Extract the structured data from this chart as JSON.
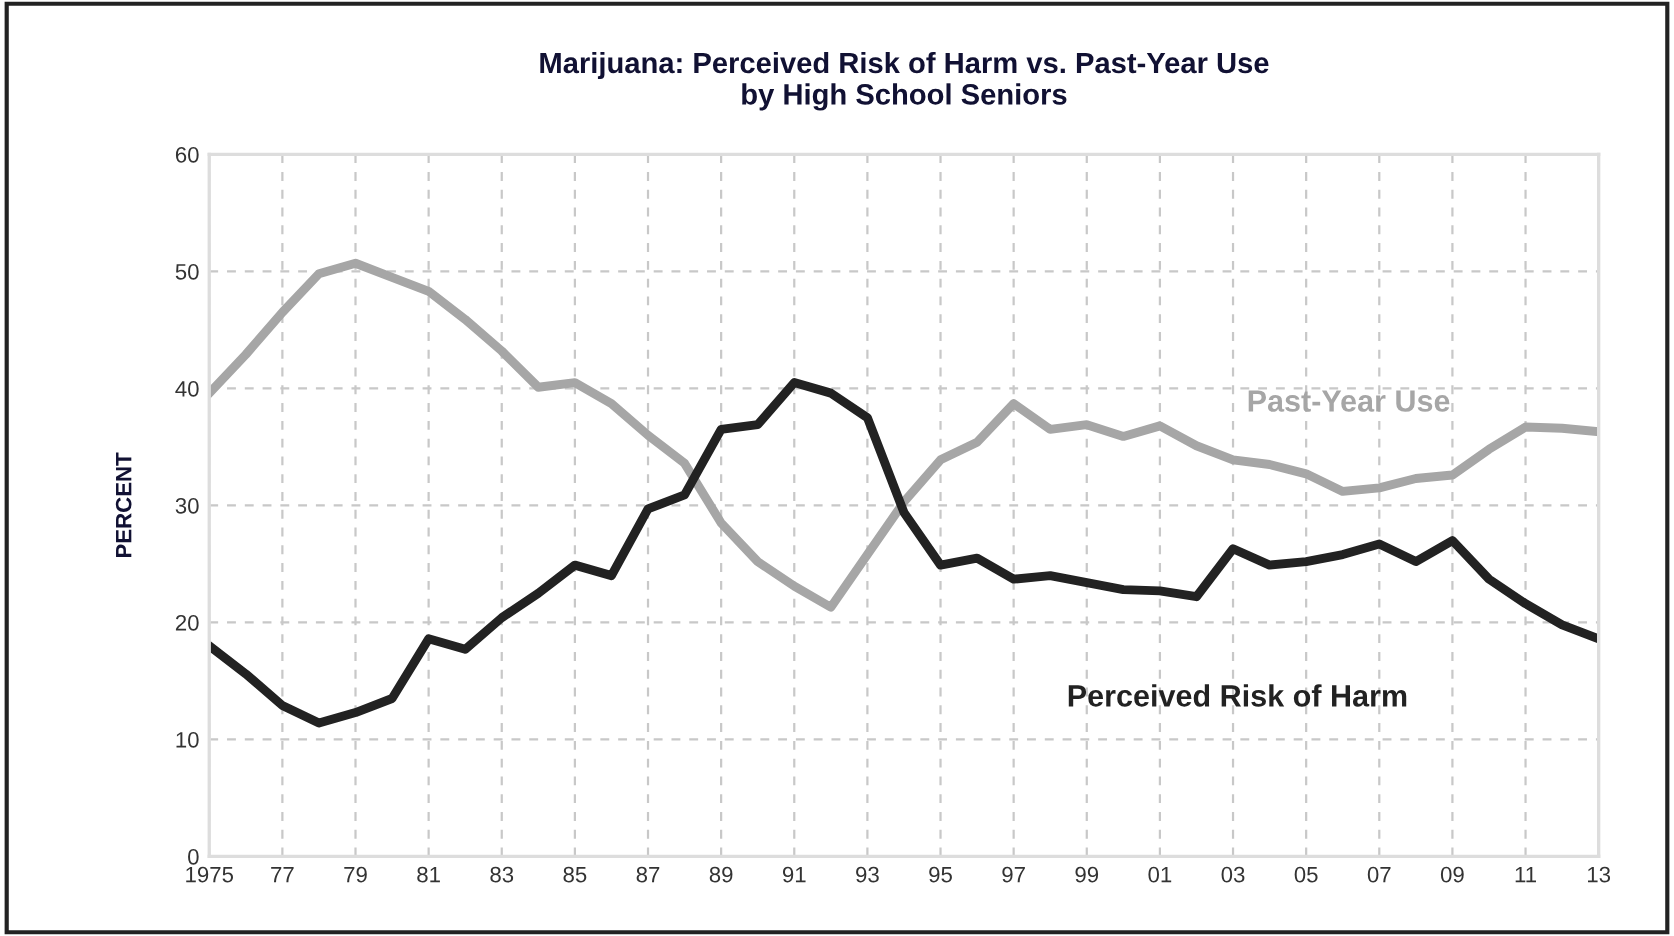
{
  "chart_data": {
    "type": "line",
    "title": "Marijuana: Perceived Risk of Harm vs. Past-Year Use\nby High School Seniors",
    "ylabel": "PERCENT",
    "x": [
      1975,
      1976,
      1977,
      1978,
      1979,
      1980,
      1981,
      1982,
      1983,
      1984,
      1985,
      1986,
      1987,
      1988,
      1989,
      1990,
      1991,
      1992,
      1993,
      1994,
      1995,
      1996,
      1997,
      1998,
      1999,
      2000,
      2001,
      2002,
      2003,
      2004,
      2005,
      2006,
      2007,
      2008,
      2009,
      2010,
      2011,
      2012,
      2013
    ],
    "series": [
      {
        "name": "Past-Year Use",
        "color": "#a6a6a6",
        "values": [
          39.6,
          42.9,
          46.5,
          49.8,
          50.7,
          49.5,
          48.3,
          45.9,
          43.2,
          40.1,
          40.5,
          38.7,
          36,
          33.6,
          28.5,
          25.2,
          23.1,
          21.3,
          25.8,
          30.3,
          33.9,
          35.4,
          38.7,
          36.5,
          36.9,
          35.9,
          36.8,
          35.1,
          33.9,
          33.5,
          32.7,
          31.2,
          31.5,
          32.3,
          32.6,
          34.8,
          36.7,
          36.6,
          36.3
        ]
      },
      {
        "name": "Perceived Risk of Harm",
        "color": "#222222",
        "values": [
          18,
          15.6,
          12.9,
          11.4,
          12.3,
          13.5,
          18.6,
          17.7,
          20.4,
          22.5,
          24.9,
          24,
          29.7,
          30.9,
          36.5,
          36.9,
          40.5,
          39.6,
          37.5,
          29.4,
          24.9,
          25.5,
          23.7,
          24,
          23.4,
          22.8,
          22.7,
          22.2,
          26.3,
          24.9,
          25.2,
          25.8,
          26.7,
          25.2,
          27,
          23.7,
          21.6,
          19.8,
          18.6
        ]
      }
    ],
    "xlim": [
      1975,
      2013
    ],
    "ylim": [
      0,
      60
    ],
    "xticks": [
      {
        "value": 1975,
        "label": "1975"
      },
      {
        "value": 1977,
        "label": "77"
      },
      {
        "value": 1979,
        "label": "79"
      },
      {
        "value": 1981,
        "label": "81"
      },
      {
        "value": 1983,
        "label": "83"
      },
      {
        "value": 1985,
        "label": "85"
      },
      {
        "value": 1987,
        "label": "87"
      },
      {
        "value": 1989,
        "label": "89"
      },
      {
        "value": 1991,
        "label": "91"
      },
      {
        "value": 1993,
        "label": "93"
      },
      {
        "value": 1995,
        "label": "95"
      },
      {
        "value": 1997,
        "label": "97"
      },
      {
        "value": 1999,
        "label": "99"
      },
      {
        "value": 2001,
        "label": "01"
      },
      {
        "value": 2003,
        "label": "03"
      },
      {
        "value": 2005,
        "label": "05"
      },
      {
        "value": 2007,
        "label": "07"
      },
      {
        "value": 2009,
        "label": "09"
      },
      {
        "value": 2011,
        "label": "11"
      },
      {
        "value": 2013,
        "label": "13"
      }
    ],
    "yticks": [
      0,
      10,
      20,
      30,
      40,
      50,
      60
    ],
    "grid": true,
    "legend": false,
    "marker": "none",
    "line_style": "solid"
  }
}
